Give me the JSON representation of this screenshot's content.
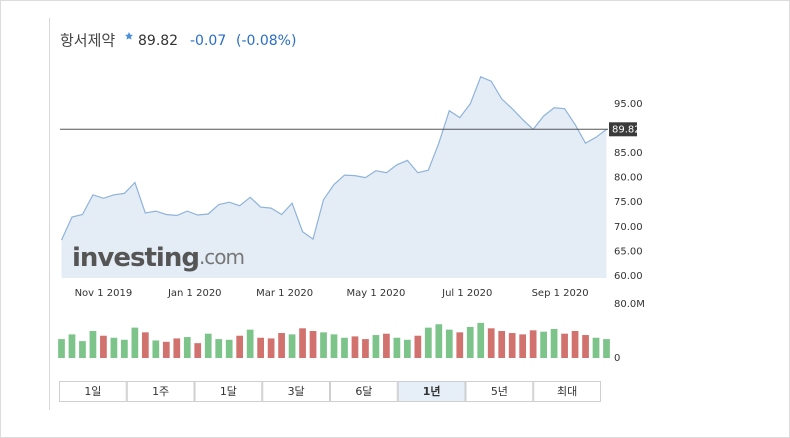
{
  "header": {
    "name": "항서제약",
    "price": "89.82",
    "change": "-0.07",
    "change_pct": "(-0.08%)"
  },
  "chart_data": [
    {
      "type": "line",
      "area": true,
      "color": "#8fb3d9",
      "fill": "#e4edf6",
      "watermark": [
        "investing",
        ".com"
      ],
      "x": [
        "2019-10-04",
        "2019-10-11",
        "2019-10-18",
        "2019-10-25",
        "2019-11-01",
        "2019-11-08",
        "2019-11-15",
        "2019-11-22",
        "2019-11-29",
        "2019-12-06",
        "2019-12-13",
        "2019-12-20",
        "2019-12-27",
        "2020-01-03",
        "2020-01-10",
        "2020-01-17",
        "2020-01-24",
        "2020-01-31",
        "2020-02-07",
        "2020-02-14",
        "2020-02-21",
        "2020-02-28",
        "2020-03-06",
        "2020-03-13",
        "2020-03-20",
        "2020-03-27",
        "2020-04-03",
        "2020-04-10",
        "2020-04-17",
        "2020-04-24",
        "2020-05-01",
        "2020-05-08",
        "2020-05-15",
        "2020-05-22",
        "2020-05-29",
        "2020-06-05",
        "2020-06-12",
        "2020-06-19",
        "2020-06-26",
        "2020-07-03",
        "2020-07-10",
        "2020-07-17",
        "2020-07-24",
        "2020-07-31",
        "2020-08-07",
        "2020-08-14",
        "2020-08-21",
        "2020-08-28",
        "2020-09-04",
        "2020-09-11",
        "2020-09-18",
        "2020-09-25",
        "2020-10-02"
      ],
      "series": [
        {
          "name": "항서제약",
          "color": "#8fb3d9",
          "values": [
            67.3,
            72,
            72.5,
            76.5,
            75.8,
            76.5,
            76.8,
            79,
            72.8,
            73.2,
            72.5,
            72.3,
            73.2,
            72.4,
            72.6,
            74.5,
            75,
            74.3,
            76,
            74,
            73.8,
            72.5,
            74.8,
            69,
            67.5,
            75.5,
            78.6,
            80.5,
            80.4,
            80,
            81.4,
            81,
            82.6,
            83.5,
            81,
            81.5,
            87,
            93.6,
            92.2,
            95,
            100.5,
            99.6,
            96,
            94,
            91.8,
            89.8,
            92.5,
            94.2,
            94,
            90.8,
            87,
            88.2,
            89.82
          ]
        }
      ],
      "xlim": [
        "2019-10-03",
        "2020-10-03"
      ],
      "xticks": [
        {
          "value": "2019-11-01",
          "label": "Nov 1 2019"
        },
        {
          "value": "2020-01-01",
          "label": "Jan 1 2020"
        },
        {
          "value": "2020-03-01",
          "label": "Mar 1 2020"
        },
        {
          "value": "2020-05-01",
          "label": "May 1 2020"
        },
        {
          "value": "2020-07-01",
          "label": "Jul 1 2020"
        },
        {
          "value": "2020-09-01",
          "label": "Sep 1 2020"
        }
      ],
      "ylim": [
        60,
        103.5
      ],
      "yticks": [
        {
          "value": 60,
          "label": "60.00"
        },
        {
          "value": 65,
          "label": "65.00"
        },
        {
          "value": 70,
          "label": "70.00"
        },
        {
          "value": 75,
          "label": "75.00"
        },
        {
          "value": 80,
          "label": "80.00"
        },
        {
          "value": 85,
          "label": "85.00"
        },
        {
          "value": 95,
          "label": "95.00"
        }
      ],
      "last_price": {
        "value": 89.82,
        "label": "89.82"
      }
    },
    {
      "type": "bar",
      "up_color": "#7cc48a",
      "down_color": "#d2726e",
      "x": [
        "2019-10-04",
        "2019-10-11",
        "2019-10-18",
        "2019-10-25",
        "2019-11-01",
        "2019-11-08",
        "2019-11-15",
        "2019-11-22",
        "2019-11-29",
        "2019-12-06",
        "2019-12-13",
        "2019-12-20",
        "2019-12-27",
        "2020-01-03",
        "2020-01-10",
        "2020-01-17",
        "2020-01-24",
        "2020-01-31",
        "2020-02-07",
        "2020-02-14",
        "2020-02-21",
        "2020-02-28",
        "2020-03-06",
        "2020-03-13",
        "2020-03-20",
        "2020-03-27",
        "2020-04-03",
        "2020-04-10",
        "2020-04-17",
        "2020-04-24",
        "2020-05-01",
        "2020-05-08",
        "2020-05-15",
        "2020-05-22",
        "2020-05-29",
        "2020-06-05",
        "2020-06-12",
        "2020-06-19",
        "2020-06-26",
        "2020-07-03",
        "2020-07-10",
        "2020-07-17",
        "2020-07-24",
        "2020-07-31",
        "2020-08-07",
        "2020-08-14",
        "2020-08-21",
        "2020-08-28",
        "2020-09-04",
        "2020-09-11",
        "2020-09-18",
        "2020-09-25",
        "2020-10-02"
      ],
      "values": [
        28000000,
        35000000,
        25000000,
        40000000,
        33000000,
        30000000,
        27000000,
        45000000,
        38000000,
        26000000,
        24000000,
        29000000,
        31000000,
        22000000,
        36000000,
        28000000,
        27000000,
        33000000,
        42000000,
        30000000,
        29000000,
        37000000,
        35000000,
        44000000,
        40000000,
        38000000,
        35000000,
        30000000,
        32000000,
        28000000,
        34000000,
        36000000,
        30000000,
        27000000,
        33000000,
        45000000,
        50000000,
        42000000,
        38000000,
        46000000,
        52000000,
        44000000,
        40000000,
        37000000,
        35000000,
        41000000,
        39000000,
        43000000,
        36000000,
        40000000,
        34000000,
        30000000,
        28000000
      ],
      "xlim": [
        "2019-10-03",
        "2020-10-03"
      ],
      "ylim": [
        0,
        80000000
      ],
      "yticks": [
        0,
        {
          "value": 80000000,
          "label": "80.0M"
        }
      ]
    }
  ],
  "controls": {
    "periods": [
      "1일",
      "1주",
      "1달",
      "3달",
      "6달",
      "1년",
      "5년",
      "최대"
    ],
    "selected": 5
  }
}
